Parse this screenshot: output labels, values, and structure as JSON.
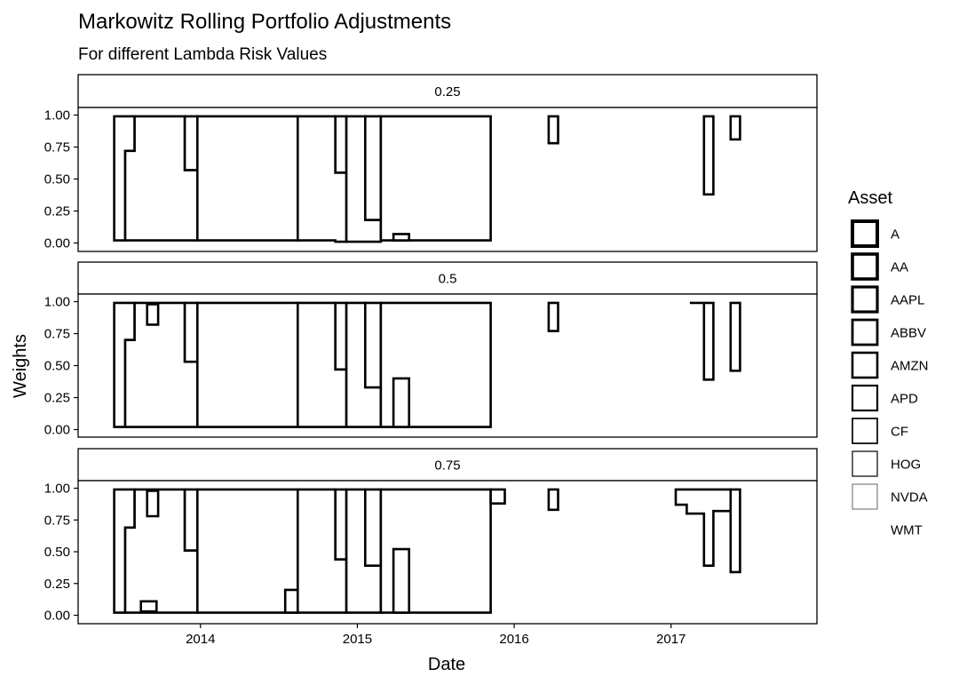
{
  "chart_data": {
    "type": "area",
    "title": "Markowitz Rolling Portfolio Adjustments",
    "subtitle": "For different Lambda Risk Values",
    "xlabel": "Date",
    "ylabel": "Weights",
    "xlim": [
      2013.22,
      2017.93
    ],
    "ylim": [
      -0.05,
      1.05
    ],
    "x_ticks": [
      2014,
      2015,
      2016,
      2017
    ],
    "x_tick_labels": [
      "2014",
      "2015",
      "2016",
      "2017"
    ],
    "y_ticks": [
      0.0,
      0.25,
      0.5,
      0.75,
      1.0
    ],
    "y_tick_labels": [
      "0.00",
      "0.25",
      "0.50",
      "0.75",
      "1.00"
    ],
    "legend": {
      "title": "Asset",
      "position": "right",
      "entries": [
        "A",
        "AA",
        "AAPL",
        "ABBV",
        "AMZN",
        "APD",
        "CF",
        "HOG",
        "NVDA",
        "WMT"
      ]
    },
    "panels": [
      {
        "label": "0.25",
        "polygons": [
          [
            [
              2013.45,
              0.02
            ],
            [
              2013.45,
              0.99
            ],
            [
              2013.58,
              0.99
            ],
            [
              2013.58,
              0.72
            ],
            [
              2013.52,
              0.72
            ],
            [
              2013.52,
              0.02
            ]
          ],
          [
            [
              2013.52,
              0.02
            ],
            [
              2013.52,
              0.72
            ],
            [
              2013.58,
              0.72
            ],
            [
              2013.58,
              0.99
            ],
            [
              2013.9,
              0.99
            ],
            [
              2013.9,
              0.57
            ],
            [
              2013.98,
              0.57
            ],
            [
              2013.98,
              0.02
            ]
          ],
          [
            [
              2013.9,
              0.57
            ],
            [
              2013.9,
              0.99
            ],
            [
              2013.98,
              0.99
            ],
            [
              2013.98,
              0.57
            ]
          ],
          [
            [
              2013.98,
              0.02
            ],
            [
              2013.98,
              0.99
            ],
            [
              2014.62,
              0.99
            ],
            [
              2014.62,
              0.02
            ]
          ],
          [
            [
              2014.62,
              0.02
            ],
            [
              2014.62,
              0.99
            ],
            [
              2014.86,
              0.99
            ],
            [
              2014.86,
              0.55
            ],
            [
              2014.93,
              0.55
            ],
            [
              2014.93,
              0.01
            ],
            [
              2014.86,
              0.01
            ],
            [
              2014.86,
              0.02
            ]
          ],
          [
            [
              2014.86,
              0.55
            ],
            [
              2014.86,
              0.99
            ],
            [
              2014.93,
              0.99
            ],
            [
              2014.93,
              0.55
            ]
          ],
          [
            [
              2014.93,
              0.01
            ],
            [
              2014.93,
              0.99
            ],
            [
              2015.05,
              0.99
            ],
            [
              2015.05,
              0.18
            ],
            [
              2015.15,
              0.18
            ],
            [
              2015.15,
              0.01
            ]
          ],
          [
            [
              2015.05,
              0.18
            ],
            [
              2015.05,
              0.99
            ],
            [
              2015.15,
              0.99
            ],
            [
              2015.15,
              0.18
            ]
          ],
          [
            [
              2015.15,
              0.02
            ],
            [
              2015.15,
              0.99
            ],
            [
              2015.85,
              0.99
            ],
            [
              2015.85,
              0.02
            ]
          ],
          [
            [
              2015.23,
              0.02
            ],
            [
              2015.23,
              0.07
            ],
            [
              2015.33,
              0.07
            ],
            [
              2015.33,
              0.02
            ]
          ],
          [
            [
              2016.22,
              0.78
            ],
            [
              2016.22,
              0.99
            ],
            [
              2016.28,
              0.99
            ],
            [
              2016.28,
              0.78
            ]
          ],
          [
            [
              2017.21,
              0.38
            ],
            [
              2017.21,
              0.99
            ],
            [
              2017.27,
              0.99
            ],
            [
              2017.27,
              0.38
            ]
          ],
          [
            [
              2017.38,
              0.81
            ],
            [
              2017.38,
              0.99
            ],
            [
              2017.44,
              0.99
            ],
            [
              2017.44,
              0.81
            ]
          ]
        ]
      },
      {
        "label": "0.5",
        "polygons": [
          [
            [
              2013.45,
              0.02
            ],
            [
              2013.45,
              0.99
            ],
            [
              2013.58,
              0.99
            ],
            [
              2013.58,
              0.7
            ],
            [
              2013.52,
              0.7
            ],
            [
              2013.52,
              0.02
            ]
          ],
          [
            [
              2013.52,
              0.02
            ],
            [
              2013.52,
              0.7
            ],
            [
              2013.58,
              0.7
            ],
            [
              2013.58,
              0.99
            ],
            [
              2013.9,
              0.99
            ],
            [
              2013.9,
              0.53
            ],
            [
              2013.98,
              0.53
            ],
            [
              2013.98,
              0.02
            ]
          ],
          [
            [
              2013.66,
              0.82
            ],
            [
              2013.66,
              0.98
            ],
            [
              2013.73,
              0.98
            ],
            [
              2013.73,
              0.82
            ]
          ],
          [
            [
              2013.9,
              0.53
            ],
            [
              2013.9,
              0.99
            ],
            [
              2013.98,
              0.99
            ],
            [
              2013.98,
              0.53
            ]
          ],
          [
            [
              2013.98,
              0.02
            ],
            [
              2013.98,
              0.99
            ],
            [
              2014.62,
              0.99
            ],
            [
              2014.62,
              0.02
            ]
          ],
          [
            [
              2014.62,
              0.02
            ],
            [
              2014.62,
              0.99
            ],
            [
              2014.86,
              0.99
            ],
            [
              2014.86,
              0.47
            ],
            [
              2014.93,
              0.47
            ],
            [
              2014.93,
              0.02
            ]
          ],
          [
            [
              2014.86,
              0.47
            ],
            [
              2014.86,
              0.99
            ],
            [
              2014.93,
              0.99
            ],
            [
              2014.93,
              0.47
            ]
          ],
          [
            [
              2014.93,
              0.02
            ],
            [
              2014.93,
              0.99
            ],
            [
              2015.05,
              0.99
            ],
            [
              2015.05,
              0.33
            ],
            [
              2015.15,
              0.33
            ],
            [
              2015.15,
              0.02
            ]
          ],
          [
            [
              2015.05,
              0.33
            ],
            [
              2015.05,
              0.99
            ],
            [
              2015.15,
              0.99
            ],
            [
              2015.15,
              0.33
            ]
          ],
          [
            [
              2015.15,
              0.02
            ],
            [
              2015.15,
              0.99
            ],
            [
              2015.85,
              0.99
            ],
            [
              2015.85,
              0.02
            ]
          ],
          [
            [
              2015.23,
              0.02
            ],
            [
              2015.23,
              0.4
            ],
            [
              2015.33,
              0.4
            ],
            [
              2015.33,
              0.02
            ]
          ],
          [
            [
              2016.22,
              0.77
            ],
            [
              2016.22,
              0.99
            ],
            [
              2016.28,
              0.99
            ],
            [
              2016.28,
              0.77
            ]
          ],
          [
            [
              2017.12,
              0.99
            ],
            [
              2017.21,
              0.99
            ],
            [
              2017.21,
              0.39
            ],
            [
              2017.27,
              0.39
            ],
            [
              2017.27,
              0.99
            ]
          ],
          [
            [
              2017.38,
              0.46
            ],
            [
              2017.38,
              0.99
            ],
            [
              2017.44,
              0.99
            ],
            [
              2017.44,
              0.46
            ]
          ]
        ]
      },
      {
        "label": "0.75",
        "polygons": [
          [
            [
              2013.45,
              0.02
            ],
            [
              2013.45,
              0.99
            ],
            [
              2013.58,
              0.99
            ],
            [
              2013.58,
              0.69
            ],
            [
              2013.52,
              0.69
            ],
            [
              2013.52,
              0.02
            ]
          ],
          [
            [
              2013.52,
              0.02
            ],
            [
              2013.52,
              0.69
            ],
            [
              2013.58,
              0.69
            ],
            [
              2013.58,
              0.99
            ],
            [
              2013.9,
              0.99
            ],
            [
              2013.9,
              0.51
            ],
            [
              2013.98,
              0.51
            ],
            [
              2013.98,
              0.02
            ]
          ],
          [
            [
              2013.62,
              0.03
            ],
            [
              2013.62,
              0.11
            ],
            [
              2013.72,
              0.11
            ],
            [
              2013.72,
              0.03
            ]
          ],
          [
            [
              2013.66,
              0.78
            ],
            [
              2013.66,
              0.98
            ],
            [
              2013.73,
              0.98
            ],
            [
              2013.73,
              0.78
            ]
          ],
          [
            [
              2013.9,
              0.51
            ],
            [
              2013.9,
              0.99
            ],
            [
              2013.98,
              0.99
            ],
            [
              2013.98,
              0.51
            ]
          ],
          [
            [
              2013.98,
              0.02
            ],
            [
              2013.98,
              0.99
            ],
            [
              2014.62,
              0.99
            ],
            [
              2014.62,
              0.02
            ]
          ],
          [
            [
              2014.54,
              0.02
            ],
            [
              2014.54,
              0.2
            ],
            [
              2014.62,
              0.2
            ],
            [
              2014.62,
              0.02
            ]
          ],
          [
            [
              2014.62,
              0.02
            ],
            [
              2014.62,
              0.99
            ],
            [
              2014.86,
              0.99
            ],
            [
              2014.86,
              0.44
            ],
            [
              2014.93,
              0.44
            ],
            [
              2014.93,
              0.02
            ]
          ],
          [
            [
              2014.86,
              0.44
            ],
            [
              2014.86,
              0.99
            ],
            [
              2014.93,
              0.99
            ],
            [
              2014.93,
              0.44
            ]
          ],
          [
            [
              2014.93,
              0.02
            ],
            [
              2014.93,
              0.99
            ],
            [
              2015.05,
              0.99
            ],
            [
              2015.05,
              0.39
            ],
            [
              2015.15,
              0.39
            ],
            [
              2015.15,
              0.02
            ]
          ],
          [
            [
              2015.05,
              0.39
            ],
            [
              2015.05,
              0.99
            ],
            [
              2015.15,
              0.99
            ],
            [
              2015.15,
              0.39
            ]
          ],
          [
            [
              2015.15,
              0.02
            ],
            [
              2015.15,
              0.99
            ],
            [
              2015.85,
              0.99
            ],
            [
              2015.85,
              0.02
            ]
          ],
          [
            [
              2015.85,
              0.88
            ],
            [
              2015.85,
              0.99
            ],
            [
              2015.94,
              0.99
            ],
            [
              2015.94,
              0.88
            ]
          ],
          [
            [
              2015.23,
              0.02
            ],
            [
              2015.23,
              0.52
            ],
            [
              2015.33,
              0.52
            ],
            [
              2015.33,
              0.02
            ]
          ],
          [
            [
              2016.22,
              0.83
            ],
            [
              2016.22,
              0.99
            ],
            [
              2016.28,
              0.99
            ],
            [
              2016.28,
              0.83
            ]
          ],
          [
            [
              2017.03,
              0.99
            ],
            [
              2017.03,
              0.87
            ],
            [
              2017.1,
              0.87
            ],
            [
              2017.1,
              0.8
            ],
            [
              2017.21,
              0.8
            ],
            [
              2017.21,
              0.39
            ],
            [
              2017.27,
              0.39
            ],
            [
              2017.27,
              0.82
            ],
            [
              2017.38,
              0.82
            ],
            [
              2017.38,
              0.99
            ]
          ],
          [
            [
              2017.38,
              0.34
            ],
            [
              2017.38,
              0.99
            ],
            [
              2017.44,
              0.99
            ],
            [
              2017.44,
              0.34
            ]
          ]
        ]
      }
    ]
  }
}
